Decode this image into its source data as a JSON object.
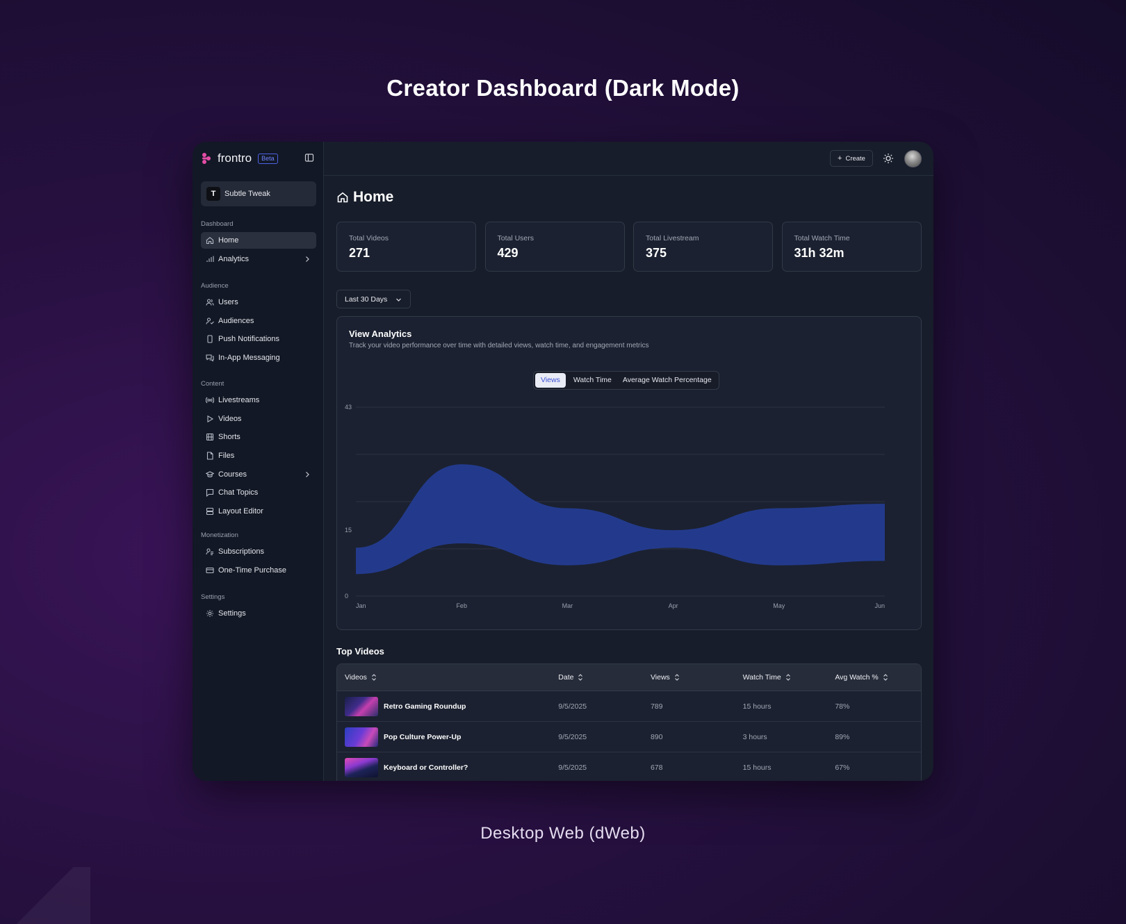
{
  "hero": {
    "title": "Creator Dashboard (Dark Mode)",
    "caption": "Desktop Web (dWeb)"
  },
  "brand": {
    "name": "frontro",
    "badge": "Beta",
    "logo_color": "#e44da6"
  },
  "workspace": {
    "initial": "T",
    "name": "Subtle Tweak"
  },
  "sidebar": {
    "sections": [
      {
        "heading": "Dashboard",
        "items": [
          {
            "label": "Home",
            "icon": "home-icon",
            "active": true
          },
          {
            "label": "Analytics",
            "icon": "bar-chart-icon",
            "has_chevron": true
          }
        ]
      },
      {
        "heading": "Audience",
        "items": [
          {
            "label": "Users",
            "icon": "users-icon"
          },
          {
            "label": "Audiences",
            "icon": "user-check-icon"
          },
          {
            "label": "Push Notifications",
            "icon": "phone-icon"
          },
          {
            "label": "In-App Messaging",
            "icon": "messages-icon"
          }
        ]
      },
      {
        "heading": "Content",
        "items": [
          {
            "label": "Livestreams",
            "icon": "broadcast-icon"
          },
          {
            "label": "Videos",
            "icon": "play-icon"
          },
          {
            "label": "Shorts",
            "icon": "film-icon"
          },
          {
            "label": "Files",
            "icon": "file-icon"
          },
          {
            "label": "Courses",
            "icon": "graduation-cap-icon",
            "has_chevron": true
          },
          {
            "label": "Chat Topics",
            "icon": "chat-icon"
          },
          {
            "label": "Layout Editor",
            "icon": "layout-icon"
          }
        ]
      },
      {
        "heading": "Monetization",
        "items": [
          {
            "label": "Subscriptions",
            "icon": "subscription-icon"
          },
          {
            "label": "One-Time Purchase",
            "icon": "credit-card-icon"
          }
        ]
      },
      {
        "heading": "Settings",
        "items": [
          {
            "label": "Settings",
            "icon": "gear-icon"
          }
        ]
      }
    ]
  },
  "topbar": {
    "create_label": "Create"
  },
  "page": {
    "title": "Home"
  },
  "stats": [
    {
      "label": "Total Videos",
      "value": "271"
    },
    {
      "label": "Total Users",
      "value": "429"
    },
    {
      "label": "Total Livestream",
      "value": "375"
    },
    {
      "label": "Total Watch Time",
      "value": "31h 32m"
    }
  ],
  "date_range": {
    "selected": "Last 30 Days"
  },
  "analytics": {
    "title": "View Analytics",
    "description": "Track your video performance over time with detailed views, watch time, and engagement metrics",
    "tabs": [
      "Views",
      "Watch Time",
      "Average Watch Percentage"
    ],
    "active_tab": "Views"
  },
  "chart_data": {
    "type": "area",
    "x": [
      "Jan",
      "Feb",
      "Mar",
      "Apr",
      "May",
      "Jun"
    ],
    "series": [
      {
        "upper": [
          11,
          30,
          20,
          15,
          20,
          21
        ]
      },
      {
        "lower": [
          5,
          12,
          7,
          11,
          7,
          8
        ]
      }
    ],
    "yticks": [
      0,
      15,
      43
    ],
    "ylim": [
      0,
      43
    ],
    "grid": true,
    "fill_color": "#233a8c"
  },
  "top_videos": {
    "title": "Top Videos",
    "columns": [
      "Videos",
      "Date",
      "Views",
      "Watch Time",
      "Avg Watch %"
    ],
    "rows": [
      {
        "title": "Retro Gaming Roundup",
        "date": "9/5/2025",
        "views": "789",
        "watch_time": "15 hours",
        "avg_watch": "78%"
      },
      {
        "title": "Pop Culture Power-Up",
        "date": "9/5/2025",
        "views": "890",
        "watch_time": "3 hours",
        "avg_watch": "89%"
      },
      {
        "title": "Keyboard or Controller?",
        "date": "9/5/2025",
        "views": "678",
        "watch_time": "15 hours",
        "avg_watch": "67%"
      }
    ]
  }
}
